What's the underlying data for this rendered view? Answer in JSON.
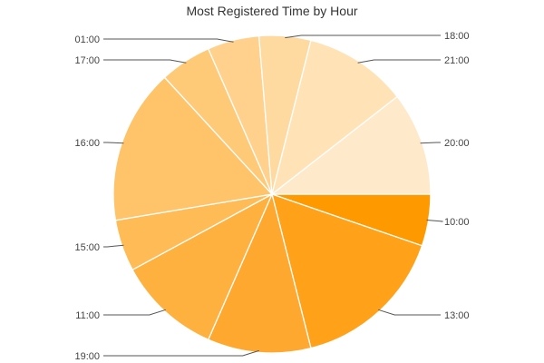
{
  "chart_data": {
    "type": "pie",
    "title": "Most Registered Time by Hour",
    "start_angle_deg": 0,
    "direction": "clockwise",
    "slices": [
      {
        "label": "10:00",
        "value": 1,
        "color": "#ff9900"
      },
      {
        "label": "13:00",
        "value": 3,
        "color": "#ffa21a"
      },
      {
        "label": "19:00",
        "value": 2,
        "color": "#ffa830"
      },
      {
        "label": "11:00",
        "value": 2,
        "color": "#ffb13f"
      },
      {
        "label": "15:00",
        "value": 1,
        "color": "#ffbb55"
      },
      {
        "label": "16:00",
        "value": 3,
        "color": "#ffc369"
      },
      {
        "label": "17:00",
        "value": 1,
        "color": "#ffca78"
      },
      {
        "label": "01:00",
        "value": 1,
        "color": "#ffd18c"
      },
      {
        "label": "18:00",
        "value": 1,
        "color": "#ffdaa0"
      },
      {
        "label": "21:00",
        "value": 2,
        "color": "#ffe3b7"
      },
      {
        "label": "20:00",
        "value": 2,
        "color": "#ffe9cb"
      }
    ]
  }
}
